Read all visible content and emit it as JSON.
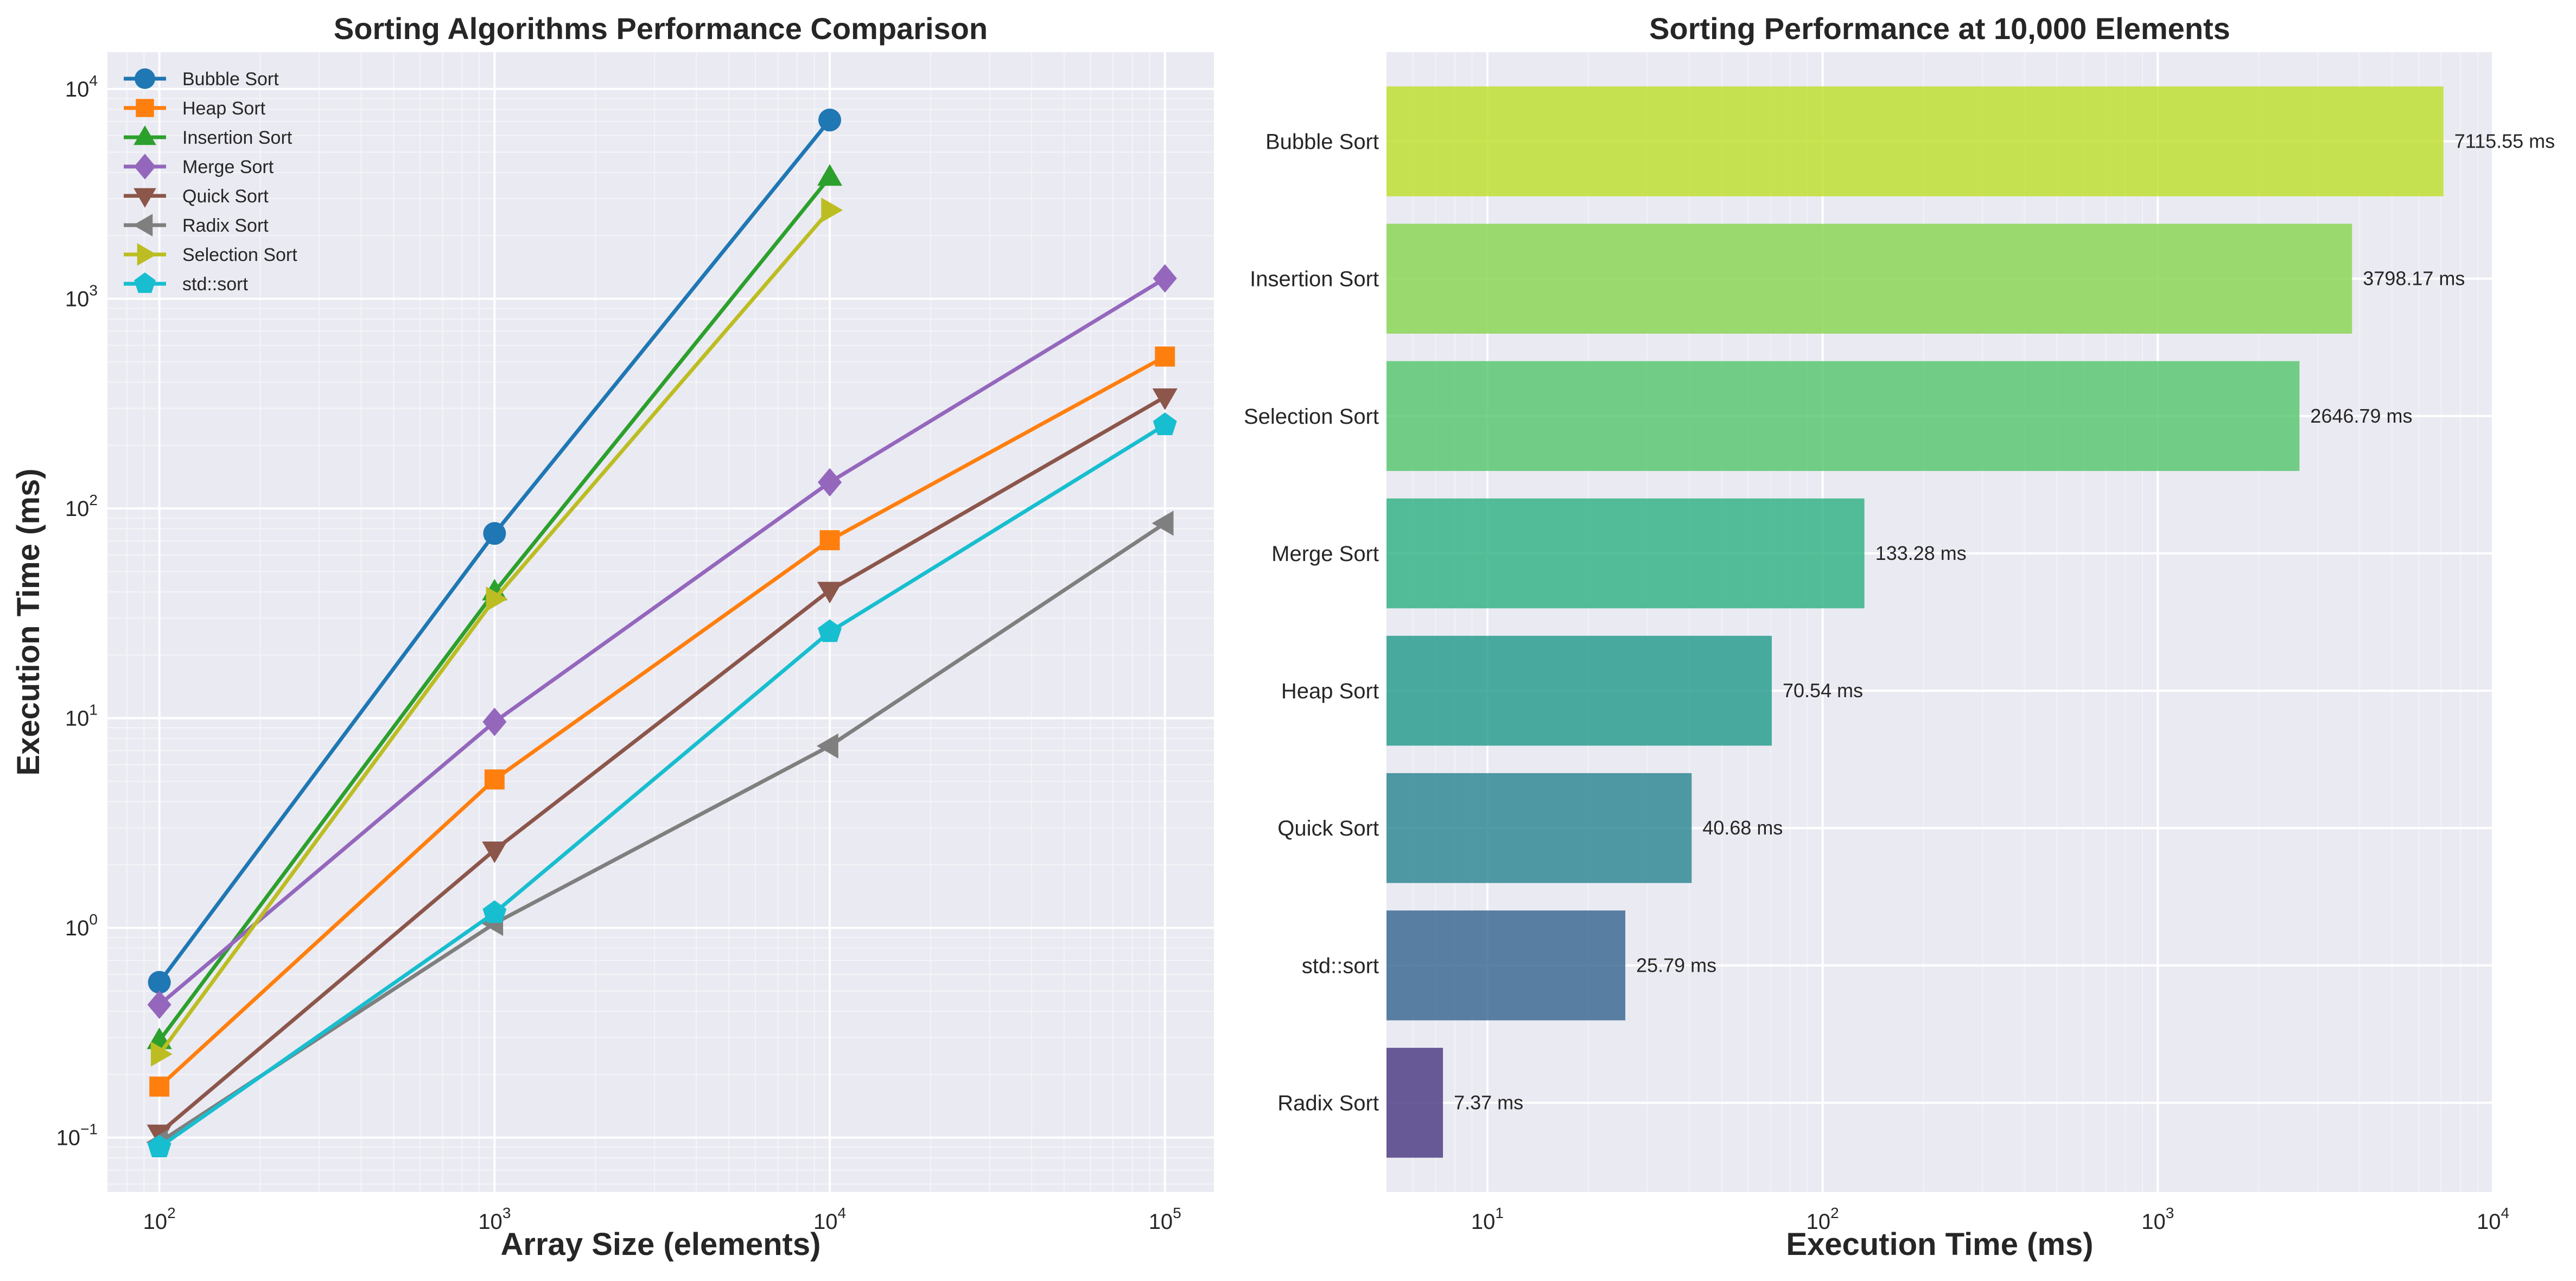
{
  "chart_data": [
    {
      "type": "line",
      "title": "Sorting Algorithms Performance Comparison",
      "xlabel": "Array Size (elements)",
      "ylabel": "Execution Time (ms)",
      "xscale": "log",
      "yscale": "log",
      "xlim": [
        70,
        140000
      ],
      "ylim": [
        0.055,
        15000
      ],
      "xticks": [
        {
          "value": 100,
          "base": "10",
          "exp": "2"
        },
        {
          "value": 1000,
          "base": "10",
          "exp": "3"
        },
        {
          "value": 10000,
          "base": "10",
          "exp": "4"
        },
        {
          "value": 100000,
          "base": "10",
          "exp": "5"
        }
      ],
      "yticks": [
        {
          "value": 0.1,
          "base": "10",
          "exp": "−1"
        },
        {
          "value": 1,
          "base": "10",
          "exp": "0"
        },
        {
          "value": 10,
          "base": "10",
          "exp": "1"
        },
        {
          "value": 100,
          "base": "10",
          "exp": "2"
        },
        {
          "value": 1000,
          "base": "10",
          "exp": "3"
        },
        {
          "value": 10000,
          "base": "10",
          "exp": "4"
        }
      ],
      "grid": true,
      "legend_position": "top-left",
      "series": [
        {
          "name": "Bubble Sort",
          "color": "#1f77b4",
          "marker": "circle",
          "x": [
            100,
            1000,
            10000
          ],
          "y": [
            0.55,
            76,
            7115.55
          ]
        },
        {
          "name": "Heap Sort",
          "color": "#ff7f0e",
          "marker": "square",
          "x": [
            100,
            1000,
            10000,
            100000
          ],
          "y": [
            0.175,
            5.1,
            70.54,
            530
          ]
        },
        {
          "name": "Insertion Sort",
          "color": "#2ca02c",
          "marker": "triangle-up",
          "x": [
            100,
            1000,
            10000
          ],
          "y": [
            0.29,
            40,
            3798.17
          ]
        },
        {
          "name": "Merge Sort",
          "color": "#9467bd",
          "marker": "diamond",
          "x": [
            100,
            1000,
            10000,
            100000
          ],
          "y": [
            0.43,
            9.6,
            133.28,
            1250
          ]
        },
        {
          "name": "Quick Sort",
          "color": "#8c564b",
          "marker": "triangle-down",
          "x": [
            100,
            1000,
            10000,
            100000
          ],
          "y": [
            0.105,
            2.35,
            40.68,
            340
          ]
        },
        {
          "name": "Radix Sort",
          "color": "#7f7f7f",
          "marker": "triangle-left",
          "x": [
            100,
            1000,
            10000,
            100000
          ],
          "y": [
            0.095,
            1.05,
            7.37,
            85
          ]
        },
        {
          "name": "Selection Sort",
          "color": "#bcbd22",
          "marker": "triangle-right",
          "x": [
            100,
            1000,
            10000
          ],
          "y": [
            0.25,
            37,
            2646.79
          ]
        },
        {
          "name": "std::sort",
          "color": "#17becf",
          "marker": "pentagon",
          "x": [
            100,
            1000,
            10000,
            100000
          ],
          "y": [
            0.09,
            1.18,
            25.79,
            250
          ]
        }
      ]
    },
    {
      "type": "bar",
      "orientation": "horizontal",
      "title": "Sorting Performance at 10,000 Elements",
      "xlabel": "Execution Time (ms)",
      "xscale": "log",
      "xlim": [
        5,
        10000
      ],
      "xticks": [
        {
          "value": 10,
          "base": "10",
          "exp": "1"
        },
        {
          "value": 100,
          "base": "10",
          "exp": "2"
        },
        {
          "value": 1000,
          "base": "10",
          "exp": "3"
        },
        {
          "value": 10000,
          "base": "10",
          "exp": "4"
        }
      ],
      "grid": true,
      "categories": [
        "Bubble Sort",
        "Insertion Sort",
        "Selection Sort",
        "Merge Sort",
        "Heap Sort",
        "Quick Sort",
        "std::sort",
        "Radix Sort"
      ],
      "values": [
        7115.55,
        3798.17,
        2646.79,
        133.28,
        70.54,
        40.68,
        25.79,
        7.37
      ],
      "value_labels": [
        "7115.55 ms",
        "3798.17 ms",
        "2646.79 ms",
        "133.28 ms",
        "70.54 ms",
        "40.68 ms",
        "25.79 ms",
        "7.37 ms"
      ],
      "colors": [
        "#bddf26",
        "#84d44b",
        "#52c569",
        "#2ab07f",
        "#1f9a8a",
        "#26838f",
        "#33638d",
        "#46337e"
      ]
    }
  ]
}
